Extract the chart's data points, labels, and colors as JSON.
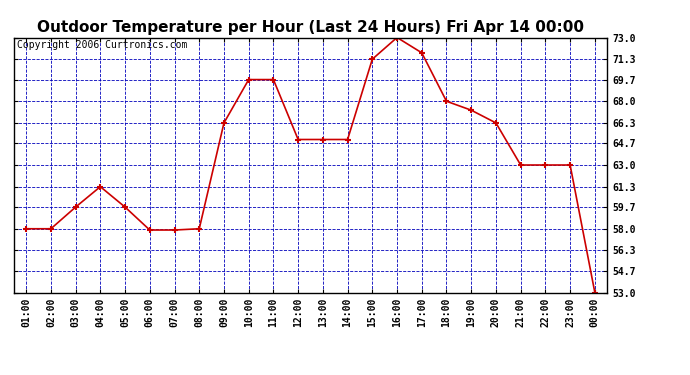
{
  "title": "Outdoor Temperature per Hour (Last 24 Hours) Fri Apr 14 00:00",
  "copyright": "Copyright 2006 Curtronics.com",
  "hours": [
    "01:00",
    "02:00",
    "03:00",
    "04:00",
    "05:00",
    "06:00",
    "07:00",
    "08:00",
    "09:00",
    "10:00",
    "11:00",
    "12:00",
    "13:00",
    "14:00",
    "15:00",
    "16:00",
    "17:00",
    "18:00",
    "19:00",
    "20:00",
    "21:00",
    "22:00",
    "23:00",
    "00:00"
  ],
  "temps": [
    58.0,
    58.0,
    59.7,
    61.3,
    59.7,
    57.9,
    57.9,
    58.0,
    66.3,
    69.7,
    69.7,
    65.0,
    65.0,
    65.0,
    71.3,
    73.0,
    71.8,
    68.0,
    67.3,
    66.3,
    63.0,
    63.0,
    63.0,
    53.0
  ],
  "ylim_min": 53.0,
  "ylim_max": 73.0,
  "yticks": [
    53.0,
    54.7,
    56.3,
    58.0,
    59.7,
    61.3,
    63.0,
    64.7,
    66.3,
    68.0,
    69.7,
    71.3,
    73.0
  ],
  "line_color": "#cc0000",
  "marker_color": "#cc0000",
  "bg_color": "#ffffff",
  "plot_bg_color": "#ffffff",
  "grid_color": "#0000bb",
  "title_fontsize": 11,
  "tick_fontsize": 7,
  "copyright_fontsize": 7
}
